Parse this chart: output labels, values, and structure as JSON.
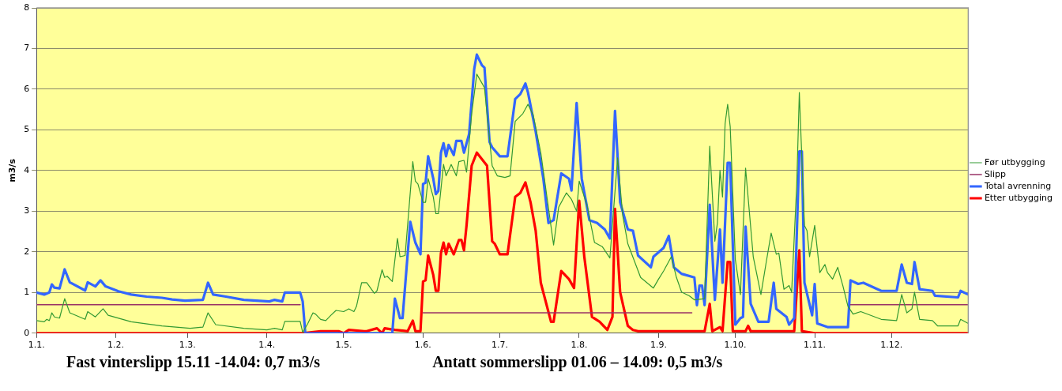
{
  "chart_data": {
    "type": "line",
    "ylabel": "m3/s",
    "annotations": [
      "Fast vinterslipp 15.11 -14.04: 0,7 m3/s",
      "Antatt sommerslipp 01.06 – 14.09: 0,5 m3/s"
    ],
    "xlim": [
      "--01-01",
      "--12-31"
    ],
    "xticks": [
      {
        "value": "--01-01",
        "label": "1.1."
      },
      {
        "value": "--02-01",
        "label": "1.2."
      },
      {
        "value": "--03-01",
        "label": "1.3."
      },
      {
        "value": "--04-01",
        "label": "1.4."
      },
      {
        "value": "--05-01",
        "label": "1.5."
      },
      {
        "value": "--06-01",
        "label": "1.6."
      },
      {
        "value": "--07-01",
        "label": "1.7."
      },
      {
        "value": "--08-01",
        "label": "1.8."
      },
      {
        "value": "--09-01",
        "label": "1.9."
      },
      {
        "value": "--10-01",
        "label": "1.10."
      },
      {
        "value": "--11-01",
        "label": "1.11."
      },
      {
        "value": "--12-01",
        "label": "1.12."
      }
    ],
    "ylim": [
      0,
      8
    ],
    "yticks": [
      0,
      1,
      2,
      3,
      4,
      5,
      6,
      7,
      8
    ],
    "grid": "y",
    "legend": "right",
    "marker": "none",
    "line_style": "solid",
    "series": [
      {
        "name": "Før utbygging",
        "color": "#339933",
        "x": [
          "--01-01",
          "--01-04",
          "--01-05",
          "--01-06",
          "--01-07",
          "--01-08",
          "--01-10",
          "--01-12",
          "--01-14",
          "--01-20",
          "--01-21",
          "--01-24",
          "--01-27",
          "--01-29",
          "--02-07",
          "--02-19",
          "--03-02",
          "--03-07",
          "--03-09",
          "--03-12",
          "--03-23",
          "--04-01",
          "--04-04",
          "--04-07",
          "--04-08",
          "--04-14",
          "--04-15",
          "--04-17",
          "--04-19",
          "--04-20",
          "--04-22",
          "--04-24",
          "--04-26",
          "--04-28",
          "--05-01",
          "--05-03",
          "--05-05",
          "--05-06",
          "--05-08",
          "--05-10",
          "--05-13",
          "--05-14",
          "--05-16",
          "--05-17",
          "--05-18",
          "--05-20",
          "--05-22",
          "--05-23",
          "--05-25",
          "--05-28",
          "--05-29",
          "--05-30",
          "--06-01",
          "--06-02",
          "--06-03",
          "--06-05",
          "--06-06",
          "--06-07",
          "--06-09",
          "--06-10",
          "--06-12",
          "--06-14",
          "--06-15",
          "--06-17",
          "--06-18",
          "--06-20",
          "--06-22",
          "--06-25",
          "--06-28",
          "--06-30",
          "--07-03",
          "--07-05",
          "--07-07",
          "--07-10",
          "--07-12",
          "--07-14",
          "--07-17",
          "--07-22",
          "--07-24",
          "--07-27",
          "--07-29",
          "--07-31",
          "--08-01",
          "--08-04",
          "--08-07",
          "--08-10",
          "--08-13",
          "--08-16",
          "--08-18",
          "--08-20",
          "--08-25",
          "--08-30",
          "--09-01",
          "--09-03",
          "--09-06",
          "--09-08",
          "--09-10",
          "--09-13",
          "--09-15",
          "--09-19",
          "--09-21",
          "--09-23",
          "--09-24",
          "--09-25",
          "--09-26",
          "--09-27",
          "--09-28",
          "--09-29",
          "--10-01",
          "--10-03",
          "--10-05",
          "--10-08",
          "--10-11",
          "--10-13",
          "--10-15",
          "--10-17",
          "--10-18",
          "--10-20",
          "--10-22",
          "--10-23",
          "--10-25",
          "--10-26",
          "--10-28",
          "--10-29",
          "--10-30",
          "--11-01",
          "--11-03",
          "--11-05",
          "--11-06",
          "--11-08",
          "--11-10",
          "--11-12",
          "--11-14",
          "--11-16",
          "--11-19",
          "--11-27",
          "--12-03",
          "--12-05",
          "--12-07",
          "--12-09",
          "--12-10",
          "--12-12",
          "--12-17",
          "--12-19",
          "--12-27",
          "--12-28",
          "--12-31"
        ],
        "values": [
          0.31,
          0.28,
          0.34,
          0.31,
          0.5,
          0.4,
          0.37,
          0.85,
          0.5,
          0.34,
          0.53,
          0.4,
          0.6,
          0.44,
          0.28,
          0.18,
          0.12,
          0.15,
          0.5,
          0.21,
          0.12,
          0.08,
          0.12,
          0.08,
          0.29,
          0.29,
          0.02,
          0.24,
          0.5,
          0.47,
          0.34,
          0.31,
          0.44,
          0.56,
          0.53,
          0.6,
          0.53,
          0.66,
          1.24,
          1.24,
          0.98,
          1.04,
          1.56,
          1.37,
          1.4,
          1.27,
          2.33,
          1.88,
          1.91,
          4.22,
          3.74,
          3.67,
          3.22,
          3.22,
          3.8,
          3.35,
          2.94,
          2.94,
          4.15,
          3.87,
          4.15,
          3.87,
          4.22,
          4.25,
          3.96,
          5.4,
          6.37,
          6.04,
          4.12,
          3.87,
          3.83,
          3.87,
          5.21,
          5.4,
          5.63,
          5.37,
          4.44,
          2.17,
          3.1,
          3.45,
          3.29,
          3.0,
          3.74,
          3.16,
          2.23,
          2.13,
          1.85,
          4.31,
          2.9,
          2.2,
          1.37,
          1.11,
          1.33,
          1.53,
          1.88,
          1.37,
          1.01,
          0.92,
          0.82,
          0.85,
          4.6,
          2.26,
          2.71,
          4.0,
          3.35,
          5.15,
          5.63,
          5.08,
          1.81,
          0.95,
          4.06,
          1.88,
          0.95,
          1.72,
          2.46,
          1.94,
          1.97,
          1.08,
          1.17,
          1.01,
          3.67,
          5.92,
          2.65,
          2.52,
          1.88,
          2.65,
          1.49,
          1.69,
          1.49,
          1.33,
          1.62,
          1.17,
          0.66,
          0.47,
          0.53,
          0.34,
          0.31,
          0.95,
          0.5,
          0.6,
          1.01,
          0.34,
          0.31,
          0.18,
          0.18,
          0.34,
          0.24
        ]
      },
      {
        "name": "Slipp",
        "color": "#993366",
        "x": [
          "--01-01",
          "--04-14",
          "--04-15",
          "--06-01",
          "--09-14",
          "--09-15",
          "--11-15",
          "--12-31"
        ],
        "values": [
          0.7,
          0.7,
          null,
          0.5,
          0.5,
          null,
          0.7,
          0.7
        ]
      },
      {
        "name": "Total avrenning",
        "color": "#3366ff",
        "x": [
          "--01-01",
          "--01-04",
          "--01-06",
          "--01-07",
          "--01-08",
          "--01-10",
          "--01-12",
          "--01-14",
          "--01-20",
          "--01-21",
          "--01-24",
          "--01-26",
          "--01-28",
          "--02-02",
          "--02-07",
          "--02-13",
          "--02-19",
          "--02-23",
          "--02-28",
          "--03-07",
          "--03-09",
          "--03-11",
          "--03-16",
          "--03-23",
          "--04-02",
          "--04-04",
          "--04-07",
          "--04-08",
          "--04-14",
          "--04-15",
          "--04-16",
          "--05-20",
          "--05-21",
          "--05-23",
          "--05-24",
          "--05-27",
          "--05-29",
          "--05-31",
          "--06-01",
          "--06-02",
          "--06-03",
          "--06-05",
          "--06-06",
          "--06-07",
          "--06-08",
          "--06-09",
          "--06-10",
          "--06-11",
          "--06-13",
          "--06-14",
          "--06-16",
          "--06-17",
          "--06-19",
          "--06-21",
          "--06-22",
          "--06-24",
          "--06-25",
          "--06-27",
          "--06-28",
          "--07-01",
          "--07-04",
          "--07-07",
          "--07-09",
          "--07-11",
          "--07-12",
          "--07-15",
          "--07-18",
          "--07-20",
          "--07-22",
          "--07-25",
          "--07-28",
          "--07-29",
          "--07-31",
          "--08-02",
          "--08-05",
          "--08-08",
          "--08-11",
          "--08-13",
          "--08-15",
          "--08-17",
          "--08-20",
          "--08-22",
          "--08-24",
          "--08-29",
          "--08-30",
          "--09-03",
          "--09-05",
          "--09-07",
          "--09-10",
          "--09-15",
          "--09-16",
          "--09-17",
          "--09-18",
          "--09-19",
          "--09-21",
          "--09-23",
          "--09-25",
          "--09-26",
          "--09-28",
          "--09-29",
          "--10-01",
          "--10-03",
          "--10-04",
          "--10-05",
          "--10-07",
          "--10-10",
          "--10-14",
          "--10-16",
          "--10-17",
          "--10-21",
          "--10-22",
          "--10-24",
          "--10-26",
          "--10-27",
          "--10-28",
          "--10-31",
          "--11-01",
          "--11-02",
          "--11-06",
          "--11-14",
          "--11-15",
          "--11-18",
          "--11-20",
          "--11-27",
          "--12-03",
          "--12-05",
          "--12-07",
          "--12-09",
          "--12-10",
          "--12-12",
          "--12-17",
          "--12-18",
          "--12-27",
          "--12-28",
          "--12-31"
        ],
        "values": [
          1.0,
          0.95,
          1.0,
          1.2,
          1.12,
          1.1,
          1.57,
          1.25,
          1.05,
          1.25,
          1.15,
          1.3,
          1.15,
          1.03,
          0.95,
          0.9,
          0.87,
          0.83,
          0.8,
          0.82,
          1.24,
          0.95,
          0.9,
          0.82,
          0.78,
          0.82,
          0.78,
          1.0,
          1.0,
          0.78,
          0.0,
          0.0,
          0.85,
          0.37,
          0.37,
          2.74,
          2.23,
          1.94,
          3.67,
          3.7,
          4.35,
          3.8,
          3.42,
          3.5,
          4.44,
          4.67,
          4.35,
          4.63,
          4.38,
          4.73,
          4.73,
          4.44,
          4.9,
          6.5,
          6.85,
          6.59,
          6.53,
          4.7,
          4.57,
          4.35,
          4.35,
          5.76,
          5.88,
          6.14,
          5.92,
          4.96,
          3.8,
          2.71,
          2.78,
          3.93,
          3.8,
          3.51,
          5.66,
          3.8,
          2.78,
          2.71,
          2.55,
          2.33,
          5.47,
          3.22,
          2.55,
          2.52,
          1.91,
          1.62,
          1.88,
          2.1,
          2.39,
          1.62,
          1.46,
          1.37,
          0.69,
          1.17,
          1.17,
          0.69,
          3.16,
          0.82,
          2.55,
          1.24,
          4.19,
          4.19,
          0.21,
          0.37,
          0.4,
          2.62,
          0.72,
          0.28,
          0.28,
          1.24,
          0.6,
          0.4,
          0.21,
          0.37,
          4.47,
          4.47,
          1.24,
          0.44,
          1.21,
          0.24,
          0.15,
          0.15,
          1.3,
          1.21,
          1.24,
          1.04,
          1.04,
          1.69,
          1.24,
          1.21,
          1.75,
          1.08,
          1.04,
          0.92,
          0.88,
          1.04,
          0.95
        ]
      },
      {
        "name": "Etter utbygging",
        "color": "#ff0000",
        "x": [
          "--01-01",
          "--04-15",
          "--04-22",
          "--04-29",
          "--05-01",
          "--05-03",
          "--05-09",
          "--05-10",
          "--05-14",
          "--05-16",
          "--05-17",
          "--05-21",
          "--05-26",
          "--05-28",
          "--05-29",
          "--05-31",
          "--06-01",
          "--06-02",
          "--06-03",
          "--06-05",
          "--06-06",
          "--06-07",
          "--06-08",
          "--06-09",
          "--06-10",
          "--06-11",
          "--06-13",
          "--06-15",
          "--06-16",
          "--06-17",
          "--06-18",
          "--06-20",
          "--06-22",
          "--06-26",
          "--06-28",
          "--06-29",
          "--07-01",
          "--07-04",
          "--07-07",
          "--07-09",
          "--07-11",
          "--07-13",
          "--07-15",
          "--07-17",
          "--07-21",
          "--07-22",
          "--07-25",
          "--07-28",
          "--07-30",
          "--08-01",
          "--08-03",
          "--08-06",
          "--08-09",
          "--08-12",
          "--08-14",
          "--08-15",
          "--08-17",
          "--08-20",
          "--08-22",
          "--08-24",
          "--09-19",
          "--09-21",
          "--09-22",
          "--09-25",
          "--09-26",
          "--09-28",
          "--09-29",
          "--09-30",
          "--10-05",
          "--10-06",
          "--10-07",
          "--10-24",
          "--10-26",
          "--10-27",
          "--11-01",
          "--12-31"
        ],
        "values": [
          0,
          0,
          0.05,
          0.05,
          0,
          0.08,
          0.05,
          0.05,
          0.12,
          0,
          0.12,
          0.08,
          0.05,
          0.31,
          0.05,
          0.05,
          1.27,
          1.3,
          1.91,
          1.43,
          1.04,
          1.04,
          1.97,
          2.23,
          1.94,
          2.2,
          1.94,
          2.29,
          2.29,
          2.04,
          2.65,
          4.12,
          4.44,
          4.12,
          2.26,
          2.2,
          1.94,
          1.94,
          3.35,
          3.45,
          3.71,
          3.22,
          2.52,
          1.24,
          0.28,
          0.28,
          1.53,
          1.33,
          1.11,
          3.26,
          1.88,
          0.4,
          0.28,
          0.08,
          0.4,
          3.06,
          1.01,
          0.18,
          0.08,
          0.05,
          0.05,
          0.72,
          0.05,
          0.15,
          0.05,
          1.75,
          1.75,
          0.05,
          0.05,
          0.18,
          0.05,
          0.05,
          2.04,
          0.05,
          0,
          0
        ]
      }
    ]
  }
}
